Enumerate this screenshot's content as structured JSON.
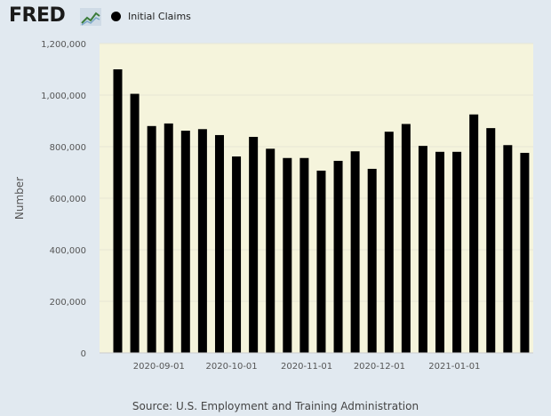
{
  "header": {
    "logo_text": "FRED",
    "legend_label": "Initial Claims"
  },
  "source": "Source: U.S. Employment and Training Administration",
  "colors": {
    "background": "#e1e9f0",
    "plot_background": "#f5f4dc",
    "bar": "#000000"
  },
  "chart_data": {
    "type": "bar",
    "ylabel": "Number",
    "ylim": [
      0,
      1200000
    ],
    "yticks": [
      0,
      200000,
      400000,
      600000,
      800000,
      1000000,
      1200000
    ],
    "ytick_labels": [
      "0",
      "200,000",
      "400,000",
      "600,000",
      "800,000",
      "1,000,000",
      "1,200,000"
    ],
    "xtick_labels": [
      "2020-09-01",
      "2020-10-01",
      "2020-11-01",
      "2020-12-01",
      "2021-01-01"
    ],
    "xtick_dates": [
      "2020-09-01",
      "2020-10-01",
      "2020-11-01",
      "2020-12-01",
      "2021-01-01"
    ],
    "grid": true,
    "series": [
      {
        "name": "Initial Claims",
        "x": [
          "2020-08-15",
          "2020-08-22",
          "2020-08-29",
          "2020-09-05",
          "2020-09-12",
          "2020-09-19",
          "2020-09-26",
          "2020-10-03",
          "2020-10-10",
          "2020-10-17",
          "2020-10-24",
          "2020-10-31",
          "2020-11-07",
          "2020-11-14",
          "2020-11-21",
          "2020-11-28",
          "2020-12-05",
          "2020-12-12",
          "2020-12-19",
          "2020-12-26",
          "2021-01-02",
          "2021-01-09",
          "2021-01-16",
          "2021-01-23",
          "2021-01-30"
        ],
        "values": [
          1100000,
          1005000,
          880000,
          890000,
          862000,
          868000,
          845000,
          762000,
          838000,
          792000,
          756000,
          756000,
          707000,
          745000,
          782000,
          714000,
          858000,
          888000,
          803000,
          780000,
          780000,
          925000,
          872000,
          806000,
          776000
        ]
      }
    ]
  }
}
